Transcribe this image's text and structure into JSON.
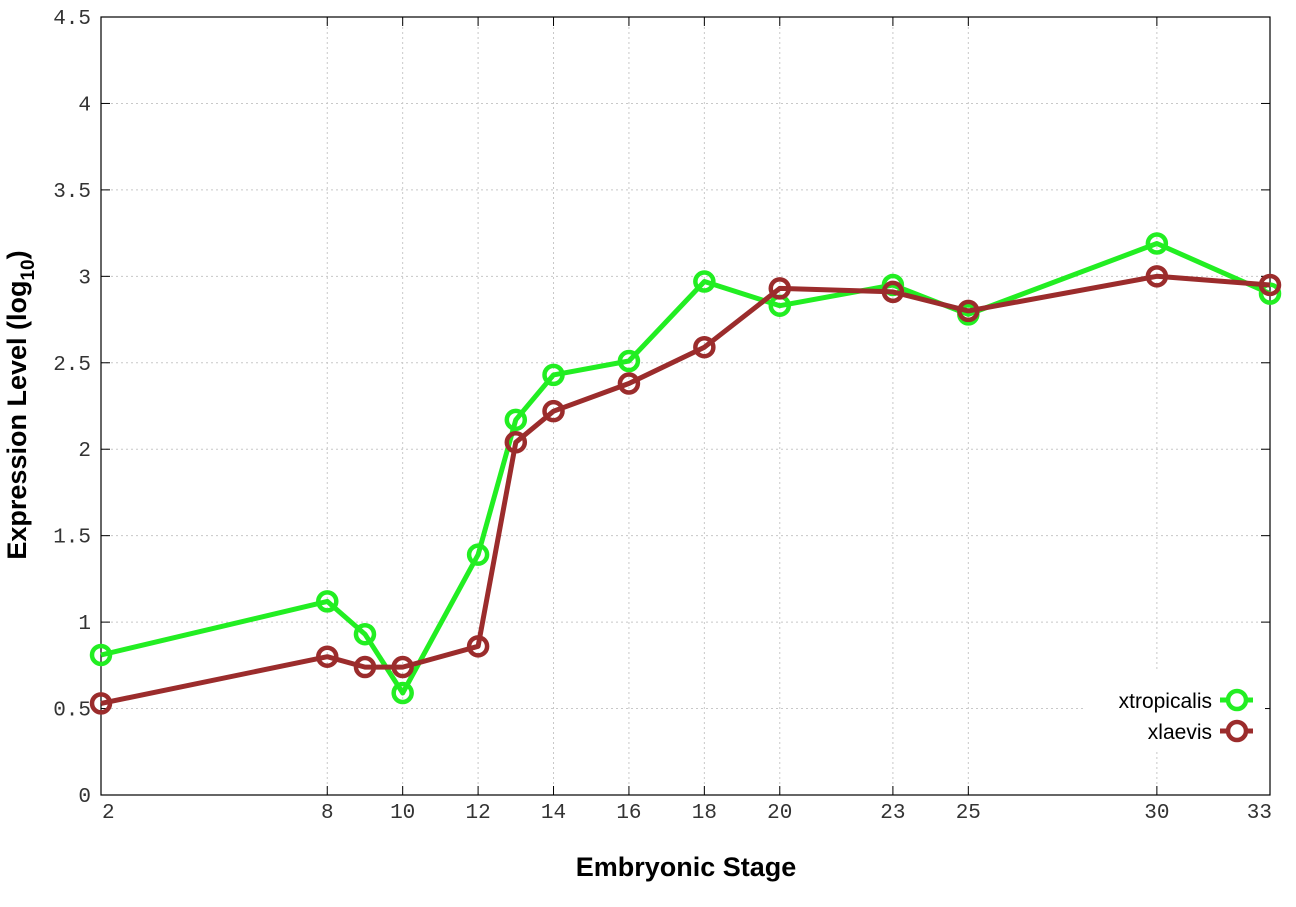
{
  "chart_data": {
    "type": "line",
    "title": "",
    "xlabel": "Embryonic Stage",
    "ylabel_main": "Expression Level (log",
    "ylabel_sub": "10",
    "ylabel_close": ")",
    "xlim": [
      2,
      33
    ],
    "ylim": [
      0,
      4.5
    ],
    "x_ticks": [
      2,
      8,
      10,
      12,
      14,
      16,
      18,
      20,
      23,
      25,
      30,
      33
    ],
    "x_tick_labels": [
      "2",
      "8",
      "10",
      "12",
      "14",
      "16",
      "18",
      "20",
      "23",
      "25",
      "30",
      "33"
    ],
    "y_ticks": [
      0,
      0.5,
      1,
      1.5,
      2,
      2.5,
      3,
      3.5,
      4,
      4.5
    ],
    "y_tick_labels": [
      "0",
      "0.5",
      "1",
      "1.5",
      "2",
      "2.5",
      "3",
      "3.5",
      "4",
      "4.5"
    ],
    "grid": true,
    "legend_position": "bottom-right",
    "series": [
      {
        "name": "xtropicalis",
        "color": "#22ee22",
        "x": [
          2,
          8,
          9,
          10,
          12,
          13,
          14,
          16,
          18,
          20,
          23,
          25,
          30,
          33
        ],
        "y": [
          0.81,
          1.12,
          0.93,
          0.59,
          1.39,
          2.17,
          2.43,
          2.51,
          2.97,
          2.83,
          2.95,
          2.78,
          3.19,
          2.9
        ]
      },
      {
        "name": "xlaevis",
        "color": "#9b2c2c",
        "x": [
          2,
          8,
          9,
          10,
          12,
          13,
          14,
          16,
          18,
          20,
          23,
          25,
          30,
          33
        ],
        "y": [
          0.53,
          0.8,
          0.74,
          0.74,
          0.86,
          2.04,
          2.22,
          2.38,
          2.59,
          2.93,
          2.91,
          2.8,
          3.0,
          2.95
        ]
      }
    ]
  }
}
